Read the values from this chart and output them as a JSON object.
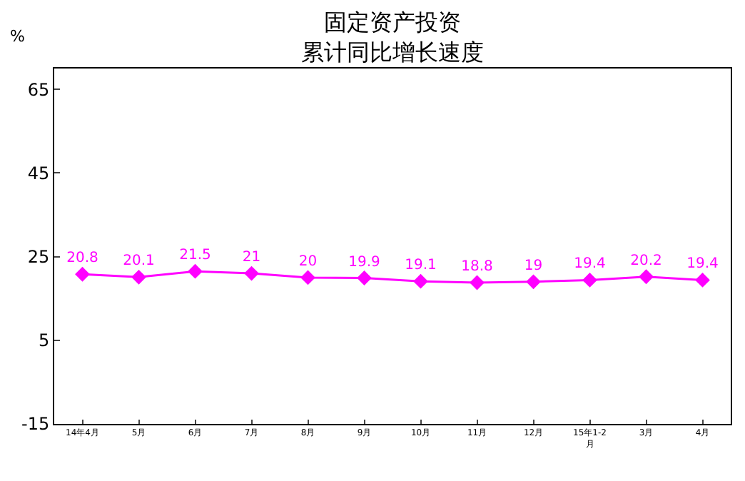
{
  "chart_data": {
    "type": "line",
    "title": "固定资产投资",
    "subtitle": "累计同比增长速度",
    "ylabel": "%",
    "categories": [
      "14年4月",
      "5月",
      "6月",
      "7月",
      "8月",
      "9月",
      "10月",
      "11月",
      "12月",
      "15年1-2月",
      "3月",
      "4月"
    ],
    "series": [
      {
        "color": "#ff00ff",
        "values": [
          20.8,
          20.1,
          21.5,
          21,
          20,
          19.9,
          19.1,
          18.8,
          19,
          19.4,
          20.2,
          19.4
        ]
      }
    ],
    "ylim": [
      -15,
      70
    ],
    "yticks": [
      -15,
      5,
      25,
      45,
      65
    ],
    "data_labels": true,
    "marker": "diamond",
    "legend": false
  }
}
